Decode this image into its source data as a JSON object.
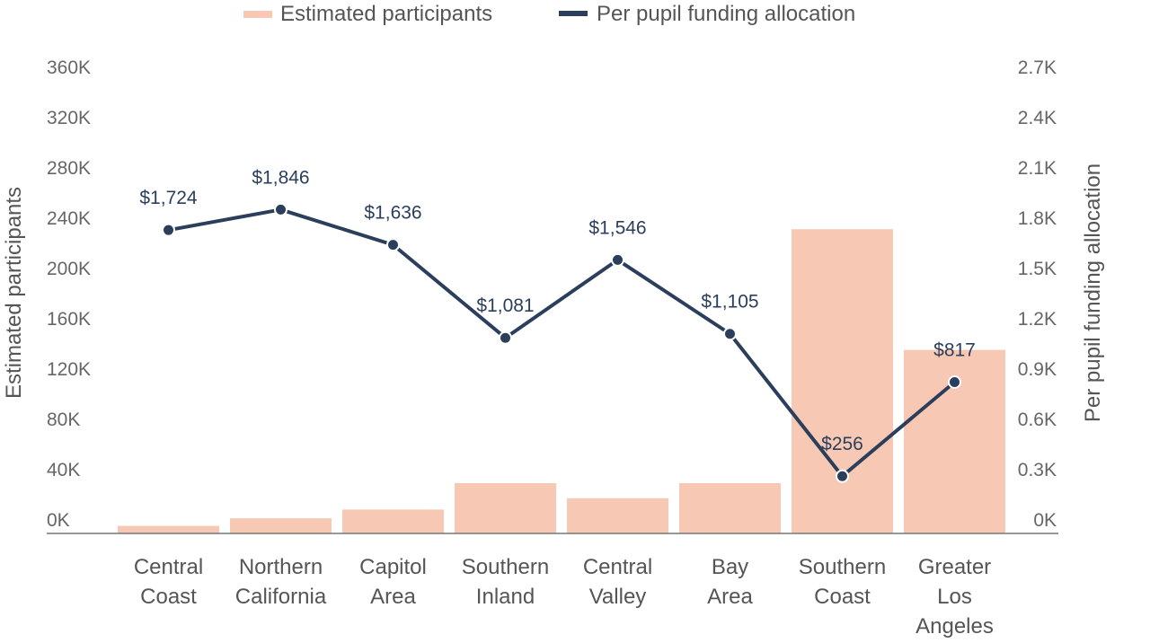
{
  "chart_data": {
    "type": "bar+line",
    "categories": [
      [
        "Central",
        "Coast"
      ],
      [
        "Northern",
        "California"
      ],
      [
        "Capitol",
        "Area"
      ],
      [
        "Southern",
        "Inland"
      ],
      [
        "Central",
        "Valley"
      ],
      [
        "Bay",
        "Area"
      ],
      [
        "Southern",
        "Coast"
      ],
      [
        "Greater",
        "Los",
        "Angeles"
      ]
    ],
    "legend": {
      "position": "top-center",
      "bars_label": "Estimated participants",
      "line_label": "Per pupil funding allocation"
    },
    "bars": {
      "name": "Estimated participants",
      "axis": "left",
      "color": "#f7c9b4",
      "values": [
        6000,
        12000,
        19000,
        40000,
        28000,
        40000,
        242000,
        146000
      ]
    },
    "line": {
      "name": "Per pupil funding allocation",
      "axis": "right",
      "color": "#2b3f5c",
      "values": [
        1724,
        1846,
        1636,
        1081,
        1546,
        1105,
        256,
        817
      ],
      "labels": [
        "$1,724",
        "$1,846",
        "$1,636",
        "$1,081",
        "$1,546",
        "$1,105",
        "$256",
        "$817"
      ]
    },
    "y_left": {
      "label": "Estimated participants",
      "range": [
        0,
        360000
      ],
      "ticks": [
        "0K",
        "40K",
        "80K",
        "120K",
        "160K",
        "200K",
        "240K",
        "280K",
        "320K",
        "360K"
      ]
    },
    "y_right": {
      "label": "Per pupil funding allocation",
      "range": [
        0,
        2700
      ],
      "ticks": [
        "0K",
        "0.3K",
        "0.6K",
        "0.9K",
        "1.2K",
        "1.5K",
        "1.8K",
        "2.1K",
        "2.4K",
        "2.7K"
      ]
    },
    "grid": false
  }
}
